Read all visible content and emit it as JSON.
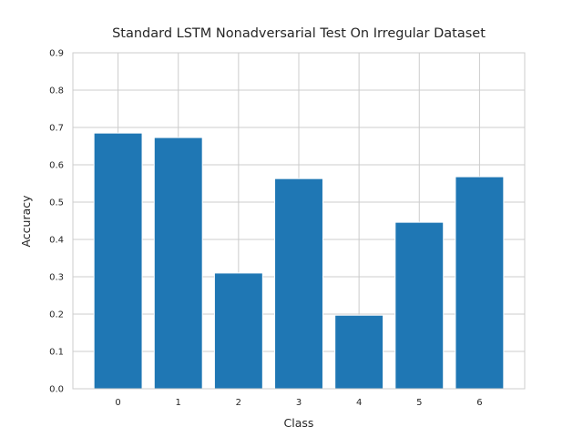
{
  "chart_data": {
    "type": "bar",
    "title": "Standard LSTM Nonadversarial Test On Irregular Dataset",
    "xlabel": "Class",
    "ylabel": "Accuracy",
    "categories": [
      "0",
      "1",
      "2",
      "3",
      "4",
      "5",
      "6"
    ],
    "values": [
      0.685,
      0.673,
      0.31,
      0.563,
      0.197,
      0.446,
      0.568
    ],
    "ylim": [
      0,
      0.9
    ],
    "yticks": [
      "0.0",
      "0.1",
      "0.2",
      "0.3",
      "0.4",
      "0.5",
      "0.6",
      "0.7",
      "0.8",
      "0.9"
    ],
    "grid": true,
    "bar_color": "#1f77b4",
    "grid_color": "#cccccc"
  }
}
